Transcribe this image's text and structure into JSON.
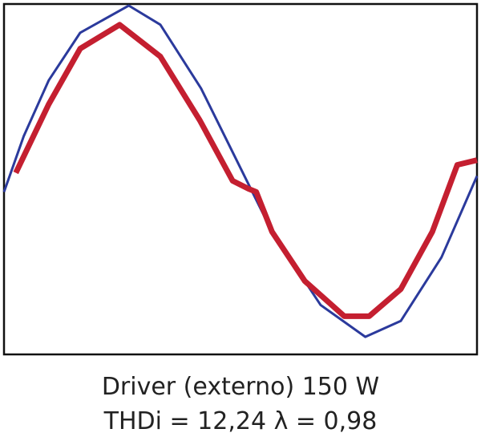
{
  "chart_data": {
    "type": "line",
    "title": "Driver (externo) 150 W",
    "subtitle": "THDi = 12,24 λ = 0,98",
    "xlim": [
      0,
      360
    ],
    "ylim": [
      -1.1,
      1.1
    ],
    "series": [
      {
        "color": "#2b3a9c",
        "x": [
          0,
          15,
          34,
          58,
          95,
          119,
          150,
          180,
          204,
          241,
          275,
          302,
          333,
          360
        ],
        "values": [
          -0.08,
          0.27,
          0.62,
          0.92,
          1.09,
          0.97,
          0.57,
          0.07,
          -0.33,
          -0.79,
          -0.99,
          -0.89,
          -0.49,
          0.02
        ]
      },
      {
        "color": "#c41f30",
        "x": [
          9,
          34,
          58,
          88,
          119,
          149,
          174,
          186,
          192,
          204,
          229,
          259,
          278,
          302,
          326,
          345,
          360
        ],
        "values": [
          0.04,
          0.47,
          0.82,
          0.97,
          0.77,
          0.37,
          -0.01,
          -0.06,
          -0.08,
          -0.33,
          -0.64,
          -0.86,
          -0.86,
          -0.69,
          -0.33,
          0.09,
          0.12
        ]
      }
    ]
  }
}
